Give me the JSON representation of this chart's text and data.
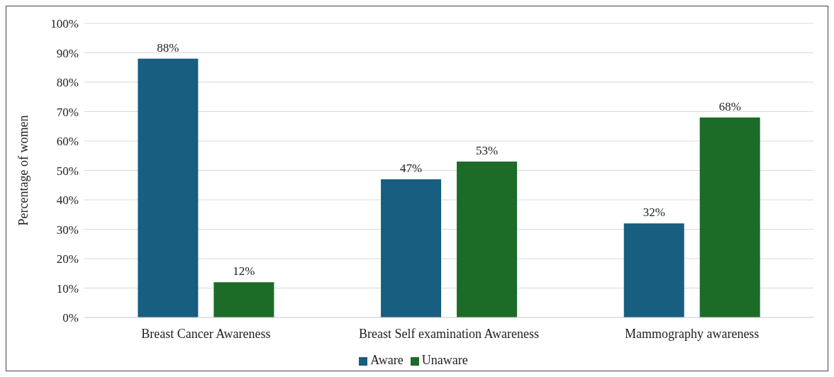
{
  "chart_data": {
    "type": "bar",
    "ylabel": "Percentage of women",
    "categories": [
      "Breast Cancer Awareness",
      "Breast Self examination Awareness",
      "Mammography awareness"
    ],
    "series": [
      {
        "name": "Aware",
        "color": "#175e80",
        "values": [
          88,
          47,
          32
        ],
        "value_labels": [
          "88%",
          "47%",
          "32%"
        ]
      },
      {
        "name": "Unaware",
        "color": "#1d6b28",
        "values": [
          12,
          53,
          68
        ],
        "value_labels": [
          "12%",
          "53%",
          "68%"
        ]
      }
    ],
    "ylim": [
      0,
      100
    ],
    "yticks": [
      {
        "value": 0,
        "label": "0%"
      },
      {
        "value": 10,
        "label": "10%"
      },
      {
        "value": 20,
        "label": "20%"
      },
      {
        "value": 30,
        "label": "30%"
      },
      {
        "value": 40,
        "label": "40%"
      },
      {
        "value": 50,
        "label": "50%"
      },
      {
        "value": 60,
        "label": "60%"
      },
      {
        "value": 70,
        "label": "70%"
      },
      {
        "value": 80,
        "label": "80%"
      },
      {
        "value": 90,
        "label": "90%"
      },
      {
        "value": 100,
        "label": "100%"
      }
    ],
    "grid": "y",
    "legend": "bottom"
  }
}
